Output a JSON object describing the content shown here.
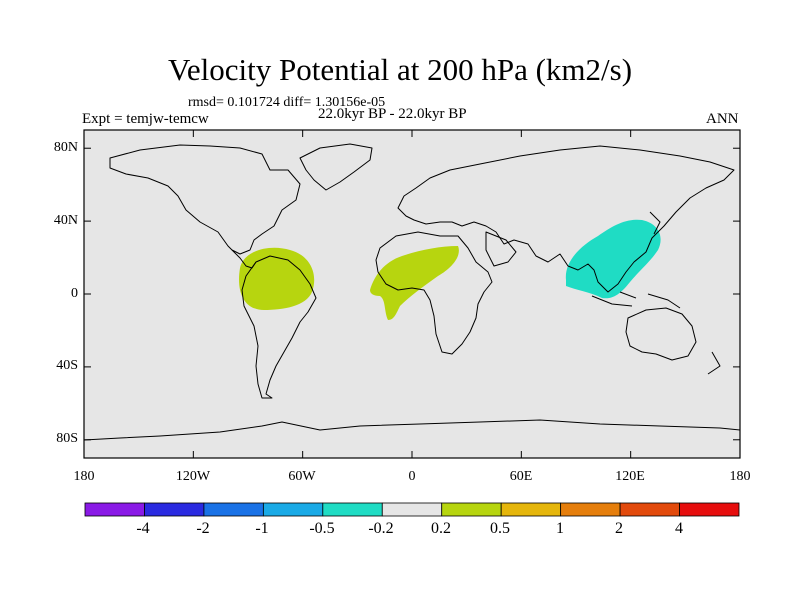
{
  "title": "Velocity Potential at 200 hPa (km2/s)",
  "stats": "rmsd= 0.101724 diff= 1.30156e-05",
  "period": "22.0kyr BP - 22.0kyr BP",
  "experiment": "Expt = temjw-temcw",
  "season": "ANN",
  "map": {
    "background_color": "#e6e6e6",
    "lat_range": [
      -90,
      90
    ],
    "lon_range": [
      -180,
      180
    ],
    "lat_ticks": [
      {
        "value": 80,
        "label": "80N"
      },
      {
        "value": 40,
        "label": "40N"
      },
      {
        "value": 0,
        "label": "0"
      },
      {
        "value": -40,
        "label": "40S"
      },
      {
        "value": -80,
        "label": "80S"
      }
    ],
    "lon_ticks": [
      {
        "value": -180,
        "label": "180"
      },
      {
        "value": -120,
        "label": "120W"
      },
      {
        "value": -60,
        "label": "60W"
      },
      {
        "value": 0,
        "label": "0"
      },
      {
        "value": 60,
        "label": "60E"
      },
      {
        "value": 120,
        "label": "120E"
      },
      {
        "value": 180,
        "label": "180"
      }
    ],
    "shaded_regions": [
      {
        "name": "south-america-positive",
        "range": "0.2 to 0.5",
        "color": "#b7d50f"
      },
      {
        "name": "africa-positive",
        "range": "0.2 to 0.5",
        "color": "#b7d50f"
      },
      {
        "name": "east-asia-negative",
        "range": "-0.5 to -0.2",
        "color": "#1fdcc4"
      }
    ]
  },
  "colorbar": {
    "colors": [
      "#8a1ae6",
      "#2a2ae0",
      "#1a72e6",
      "#1aaae6",
      "#1fdcc4",
      "#e6e6e6",
      "#b7d50f",
      "#e5b60c",
      "#e57e0c",
      "#e24a0c",
      "#e60d0d"
    ],
    "labels": [
      "-4",
      "-2",
      "-1",
      "-0.5",
      "-0.2",
      "0.2",
      "0.5",
      "1",
      "2",
      "4"
    ]
  }
}
